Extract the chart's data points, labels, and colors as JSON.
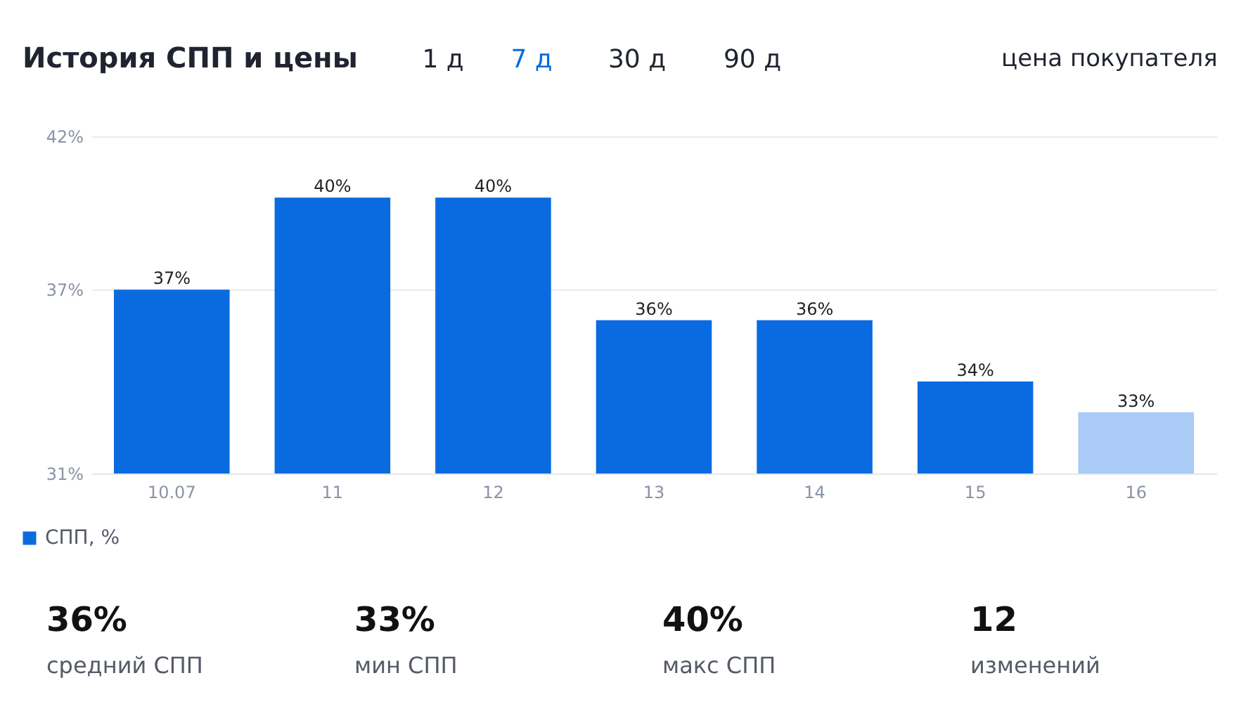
{
  "chart_data": {
    "type": "bar",
    "title": "История СПП и цены",
    "categories": [
      "10.07",
      "11",
      "12",
      "13",
      "14",
      "15",
      "16"
    ],
    "series": [
      {
        "name": "СПП, %",
        "values": [
          37,
          40,
          40,
          36,
          36,
          34,
          33
        ],
        "colors": [
          "#0a6be0",
          "#0a6be0",
          "#0a6be0",
          "#0a6be0",
          "#0a6be0",
          "#0a6be0",
          "#a9cbf5"
        ]
      }
    ],
    "value_labels": [
      "37%",
      "40%",
      "40%",
      "36%",
      "36%",
      "34%",
      "33%"
    ],
    "ylim": [
      31,
      42
    ],
    "yticks": [
      {
        "value": 31,
        "label": "31%"
      },
      {
        "value": 37,
        "label": "37%"
      },
      {
        "value": 42,
        "label": "42%"
      }
    ],
    "grid": "y",
    "legend": "bottom left",
    "annotations": [
      "1 д",
      "7 д",
      "30 д",
      "90 д",
      "цена покупателя",
      "36%",
      "средний СПП",
      "33%",
      "мин СПП",
      "40%",
      "макс СПП",
      "12",
      "изменений"
    ]
  }
}
